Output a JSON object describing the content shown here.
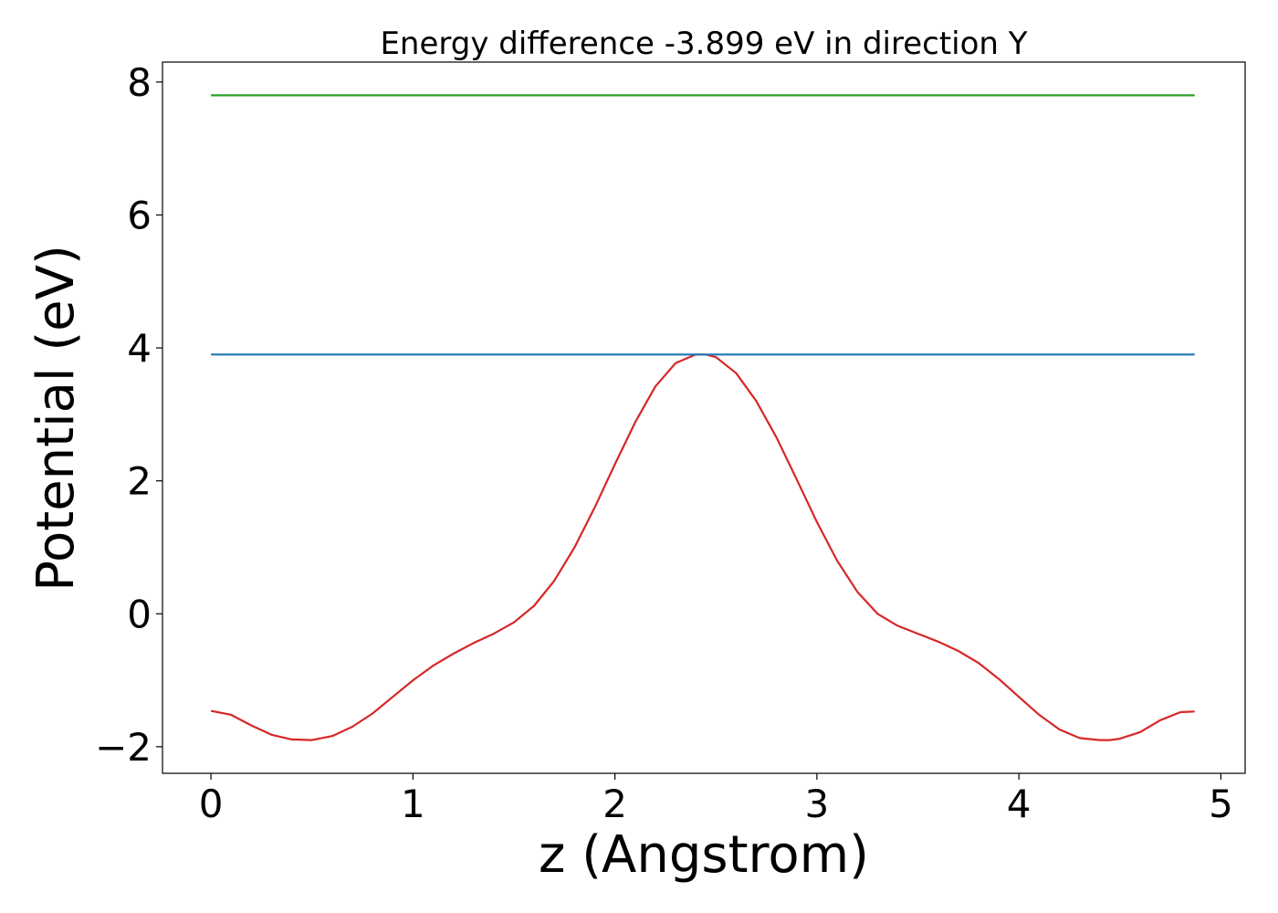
{
  "chart_data": {
    "type": "line",
    "title": "Energy difference -3.899 eV in direction Y",
    "xlabel": "z (Angstrom)",
    "ylabel": "Potential (eV)",
    "xlim": [
      -0.24,
      5.12
    ],
    "ylim": [
      -2.4,
      8.3
    ],
    "xticks": [
      0,
      1,
      2,
      3,
      4,
      5
    ],
    "xtick_labels": [
      "0",
      "1",
      "2",
      "3",
      "4",
      "5"
    ],
    "yticks": [
      -2,
      0,
      2,
      4,
      6,
      8
    ],
    "ytick_labels": [
      "−2",
      "0",
      "2",
      "4",
      "6",
      "8"
    ],
    "grid": false,
    "series": [
      {
        "color": "#d62728",
        "x": [
          0.0,
          0.1,
          0.2,
          0.3,
          0.4,
          0.5,
          0.6,
          0.7,
          0.8,
          0.9,
          1.0,
          1.1,
          1.2,
          1.3,
          1.4,
          1.5,
          1.6,
          1.7,
          1.8,
          1.9,
          2.0,
          2.1,
          2.2,
          2.3,
          2.4,
          2.45,
          2.5,
          2.6,
          2.7,
          2.8,
          2.9,
          3.0,
          3.1,
          3.2,
          3.3,
          3.4,
          3.5,
          3.6,
          3.7,
          3.8,
          3.9,
          4.0,
          4.1,
          4.2,
          4.3,
          4.4,
          4.45,
          4.5,
          4.6,
          4.7,
          4.8,
          4.87
        ],
        "y": [
          -1.46,
          -1.52,
          -1.68,
          -1.82,
          -1.89,
          -1.9,
          -1.84,
          -1.7,
          -1.5,
          -1.25,
          -1.0,
          -0.78,
          -0.6,
          -0.44,
          -0.3,
          -0.13,
          0.12,
          0.5,
          1.0,
          1.6,
          2.25,
          2.88,
          3.42,
          3.77,
          3.9,
          3.9,
          3.86,
          3.62,
          3.2,
          2.65,
          2.02,
          1.38,
          0.8,
          0.33,
          0.0,
          -0.18,
          -0.3,
          -0.42,
          -0.56,
          -0.74,
          -0.98,
          -1.25,
          -1.52,
          -1.74,
          -1.87,
          -1.9,
          -1.9,
          -1.88,
          -1.78,
          -1.6,
          -1.48,
          -1.47
        ]
      },
      {
        "color": "#1f77b4",
        "x": [
          0.0,
          4.87
        ],
        "y": [
          3.9,
          3.9
        ]
      },
      {
        "color": "#2ca02c",
        "x": [
          0.0,
          4.87
        ],
        "y": [
          7.8,
          7.8
        ]
      }
    ]
  }
}
